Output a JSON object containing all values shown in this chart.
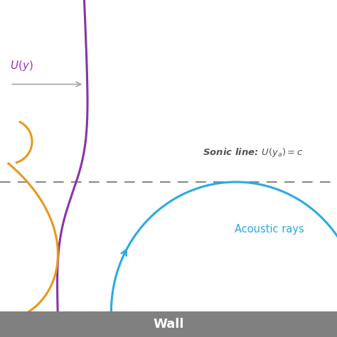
{
  "bg_color": "#ffffff",
  "wall_color": "#808080",
  "wall_label": "Wall",
  "wall_label_color": "#ffffff",
  "sonic_line_color": "#888888",
  "sonic_line_label": "Sonic line: $\\bm{U}(y_a) = c$",
  "sonic_line_label_color": "#555555",
  "uy_label": "$U(y)$",
  "uy_label_color": "#9933bb",
  "arrow_color": "#aaaaaa",
  "acoustic_label": "Acoustic rays",
  "acoustic_label_color": "#29abe2",
  "purple_color": "#8833aa",
  "orange_color": "#e89820",
  "cyan_color": "#29abe2",
  "figsize": [
    4.74,
    4.74
  ],
  "dpi": 100
}
